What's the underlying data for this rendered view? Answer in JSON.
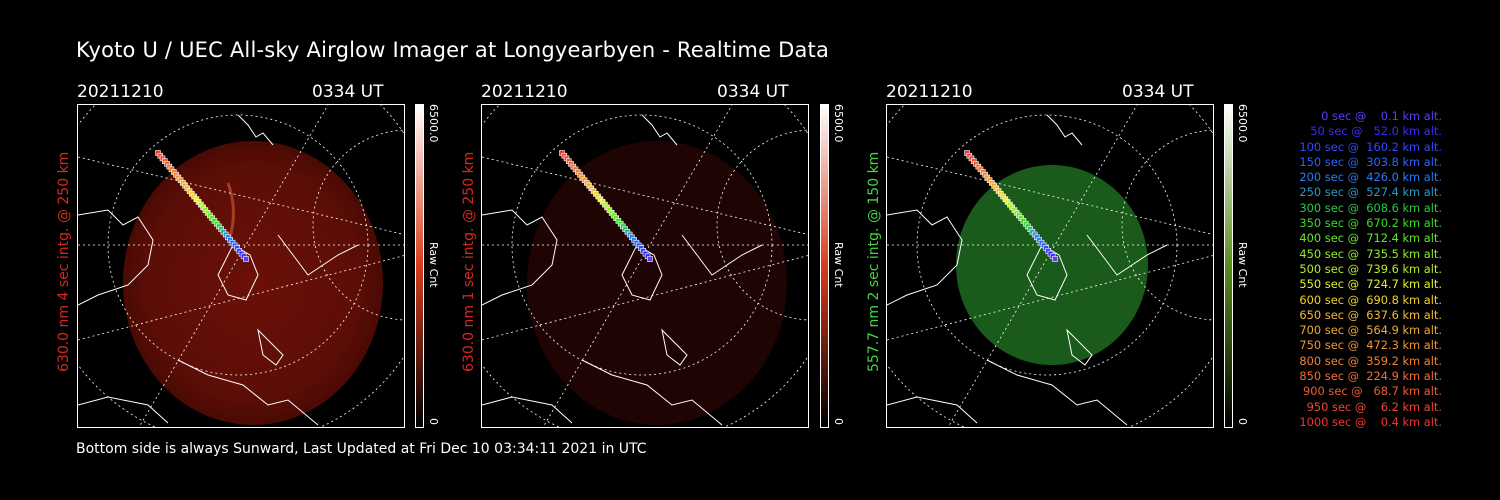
{
  "title": "Kyoto U / UEC All-sky Airglow Imager at Longyearbyen - Realtime Data",
  "panels": [
    {
      "date": "20211210",
      "time": "0334 UT",
      "label": "630.0 nm 4 sec intg. @ 250 km",
      "color": "#d8281c",
      "cbar_max": "6500.0",
      "cbar_min": "0",
      "cbar_unit": "Raw Cnt"
    },
    {
      "date": "20211210",
      "time": "0334 UT",
      "label": "630.0 nm 1 sec intg. @ 250 km",
      "color": "#d8281c",
      "cbar_max": "6500.0",
      "cbar_min": "0",
      "cbar_unit": "Raw Cnt"
    },
    {
      "date": "20211210",
      "time": "0334 UT",
      "label": "557.7 nm 2 sec intg. @ 150 km",
      "color": "#3ed83e",
      "cbar_max": "6500.0",
      "cbar_min": "0",
      "cbar_unit": "Raw Cnt"
    }
  ],
  "legend": [
    {
      "text": "   0 sec @    0.1 km alt.",
      "color": "#5a3cff"
    },
    {
      "text": "  50 sec @   52.0 km alt.",
      "color": "#3c28ff"
    },
    {
      "text": " 100 sec @  160.2 km alt.",
      "color": "#3246ff"
    },
    {
      "text": " 150 sec @  303.8 km alt.",
      "color": "#2864ff"
    },
    {
      "text": " 200 sec @  426.0 km alt.",
      "color": "#2a7cf0"
    },
    {
      "text": " 250 sec @  527.4 km alt.",
      "color": "#2c98c8"
    },
    {
      "text": " 300 sec @  608.6 km alt.",
      "color": "#28c84a"
    },
    {
      "text": " 350 sec @  670.2 km alt.",
      "color": "#3cdc28"
    },
    {
      "text": " 400 sec @  712.4 km alt.",
      "color": "#64e628"
    },
    {
      "text": " 450 sec @  735.5 km alt.",
      "color": "#8cf028"
    },
    {
      "text": " 500 sec @  739.6 km alt.",
      "color": "#b4f028"
    },
    {
      "text": " 550 sec @  724.7 km alt.",
      "color": "#e6f028"
    },
    {
      "text": " 600 sec @  690.8 km alt.",
      "color": "#f0d228"
    },
    {
      "text": " 650 sec @  637.6 km alt.",
      "color": "#f0be32"
    },
    {
      "text": " 700 sec @  564.9 km alt.",
      "color": "#f0aa32"
    },
    {
      "text": " 750 sec @  472.3 km alt.",
      "color": "#f09632"
    },
    {
      "text": " 800 sec @  359.2 km alt.",
      "color": "#f08232"
    },
    {
      "text": " 850 sec @  224.9 km alt.",
      "color": "#f06e32"
    },
    {
      "text": " 900 sec @   68.7 km alt.",
      "color": "#f05a32"
    },
    {
      "text": " 950 sec @    6.2 km alt.",
      "color": "#f04632"
    },
    {
      "text": "1000 sec @    0.4 km alt.",
      "color": "#f03232"
    }
  ],
  "footer": "Bottom side is always Sunward, Last Updated at Fri Dec 10 03:34:11 2021 in UTC"
}
